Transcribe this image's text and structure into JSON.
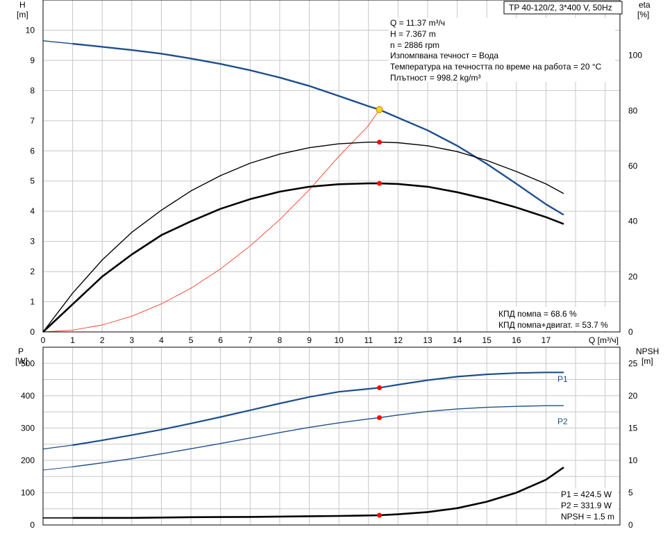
{
  "colors": {
    "head_curve": "#1f4e8c",
    "power_curve": "#1f4e8c",
    "efficiency_curve": "#000000",
    "system_curve": "#ff3b1f",
    "operating_point": "#ff0000",
    "head_operating_point": "#ffd21f",
    "grid": "#c8c8c8"
  },
  "chart_data": [
    {
      "type": "line",
      "title": "TP 40-120/2, 3*400 V, 50Hz",
      "xlabel": "Q [m³/ч]",
      "ylabel_left": "H",
      "ylabel_left_unit": "[m]",
      "ylabel_right": "eta",
      "ylabel_right_unit": "[%]",
      "xlim": [
        0,
        19.5
      ],
      "ylim_left": [
        0,
        11
      ],
      "ylim_right": [
        0,
        120
      ],
      "x_ticks": [
        0,
        1,
        2,
        3,
        4,
        5,
        6,
        7,
        8,
        9,
        10,
        11,
        12,
        13,
        14,
        15,
        16,
        17
      ],
      "y_ticks_left": [
        0,
        1,
        2,
        3,
        4,
        5,
        6,
        7,
        8,
        9,
        10
      ],
      "y_ticks_right": [
        0,
        20,
        40,
        60,
        80,
        100
      ],
      "grid": true,
      "info_lines": [
        "Q = 11.37 m³/ч",
        "H = 7.367 m",
        "n = 2886 rpm",
        "Изпомпвана течност = Вода",
        "Температура на течността по време на работа = 20 °C",
        "Плътност = 998.2 kg/m³"
      ],
      "efficiency_labels": [
        "КПД помпа = 68.6 %",
        "КПД помпа+двигат. = 53.7 %"
      ],
      "series": [
        {
          "key": "H",
          "axis": "left",
          "x": [
            0,
            1,
            2,
            3,
            4,
            5,
            6,
            7,
            8,
            9,
            10,
            11,
            11.37,
            12,
            13,
            14,
            15,
            16,
            17,
            17.6
          ],
          "values": [
            9.65,
            9.55,
            9.45,
            9.34,
            9.22,
            9.06,
            8.88,
            8.67,
            8.43,
            8.15,
            7.82,
            7.48,
            7.367,
            7.1,
            6.68,
            6.17,
            5.57,
            4.91,
            4.23,
            3.88
          ],
          "dashed_to": 1
        },
        {
          "key": "system",
          "axis": "left",
          "x": [
            0,
            1,
            2,
            3,
            4,
            5,
            6,
            7,
            8,
            9,
            10,
            11,
            11.37
          ],
          "values": [
            0,
            0.06,
            0.23,
            0.52,
            0.93,
            1.45,
            2.09,
            2.85,
            3.72,
            4.71,
            5.82,
            6.84,
            7.367
          ]
        },
        {
          "key": "eta_pump",
          "axis": "right",
          "x": [
            0,
            1,
            2,
            3,
            4,
            5,
            6,
            7,
            8,
            9,
            10,
            11,
            11.37,
            12,
            13,
            14,
            15,
            16,
            17,
            17.6
          ],
          "values": [
            0,
            14,
            26,
            36,
            44,
            51,
            56.5,
            61,
            64.3,
            66.6,
            68,
            68.6,
            68.6,
            68.4,
            67.3,
            65.2,
            62,
            58,
            53.5,
            50
          ]
        },
        {
          "key": "eta_total",
          "axis": "right",
          "x": [
            0,
            1,
            2,
            3,
            4,
            5,
            6,
            7,
            8,
            9,
            10,
            11,
            11.37,
            12,
            13,
            14,
            15,
            16,
            17,
            17.6
          ],
          "values": [
            0,
            10,
            20,
            28,
            35,
            40,
            44.5,
            48,
            50.7,
            52.5,
            53.4,
            53.7,
            53.7,
            53.5,
            52.5,
            50.5,
            48,
            45,
            41.5,
            39
          ]
        }
      ],
      "points": [
        {
          "series": "H",
          "x": 11.37,
          "y": 7.367
        },
        {
          "series": "eta_pump",
          "x": 11.37,
          "y": 68.6
        },
        {
          "series": "eta_total",
          "x": 11.37,
          "y": 53.7
        }
      ]
    },
    {
      "type": "line",
      "ylabel_left": "P",
      "ylabel_left_unit": "[W]",
      "ylabel_right": "NPSH",
      "ylabel_right_unit": "[m]",
      "xlim": [
        0,
        19.5
      ],
      "ylim_left": [
        0,
        550
      ],
      "ylim_right": [
        0,
        27.5
      ],
      "y_ticks_left": [
        0,
        100,
        200,
        300,
        400,
        500
      ],
      "y_ticks_right": [
        0,
        5,
        10,
        15,
        20,
        25
      ],
      "grid": true,
      "readout_lines": [
        "P1 = 424.5 W",
        "P2 = 331.9 W",
        "NPSH = 1.5 m"
      ],
      "series": [
        {
          "name": "P1",
          "axis": "left",
          "x": [
            0,
            1,
            2,
            3,
            4,
            5,
            6,
            7,
            8,
            9,
            10,
            11,
            11.37,
            12,
            13,
            14,
            15,
            16,
            17,
            17.6
          ],
          "values": [
            235,
            247,
            262,
            278,
            295,
            314,
            334,
            355,
            376,
            396,
            412,
            421,
            424.5,
            434,
            448,
            459,
            466,
            470,
            472,
            472
          ],
          "dashed_to": 1
        },
        {
          "name": "P2",
          "axis": "left",
          "x": [
            0,
            1,
            2,
            3,
            4,
            5,
            6,
            7,
            8,
            9,
            10,
            11,
            11.37,
            12,
            13,
            14,
            15,
            16,
            17,
            17.6
          ],
          "values": [
            170,
            180,
            192,
            205,
            220,
            236,
            252,
            269,
            286,
            302,
            316,
            328,
            331.9,
            340,
            351,
            359,
            364,
            367,
            369,
            369
          ],
          "dashed_to": 1
        },
        {
          "key": "NPSH",
          "axis": "right",
          "x": [
            0,
            1,
            2,
            3,
            4,
            5,
            6,
            7,
            8,
            9,
            10,
            11,
            11.37,
            12,
            13,
            14,
            15,
            16,
            17,
            17.6
          ],
          "values": [
            1.1,
            1.1,
            1.1,
            1.1,
            1.15,
            1.2,
            1.22,
            1.25,
            1.3,
            1.35,
            1.4,
            1.47,
            1.5,
            1.65,
            2.0,
            2.6,
            3.6,
            5.0,
            7.0,
            8.9
          ],
          "dashed_to": 1
        }
      ],
      "points": [
        {
          "series": "P1",
          "x": 11.37,
          "y": 424.5
        },
        {
          "series": "P2",
          "x": 11.37,
          "y": 331.9
        },
        {
          "series": "NPSH",
          "x": 11.37,
          "y": 1.5
        }
      ]
    }
  ]
}
